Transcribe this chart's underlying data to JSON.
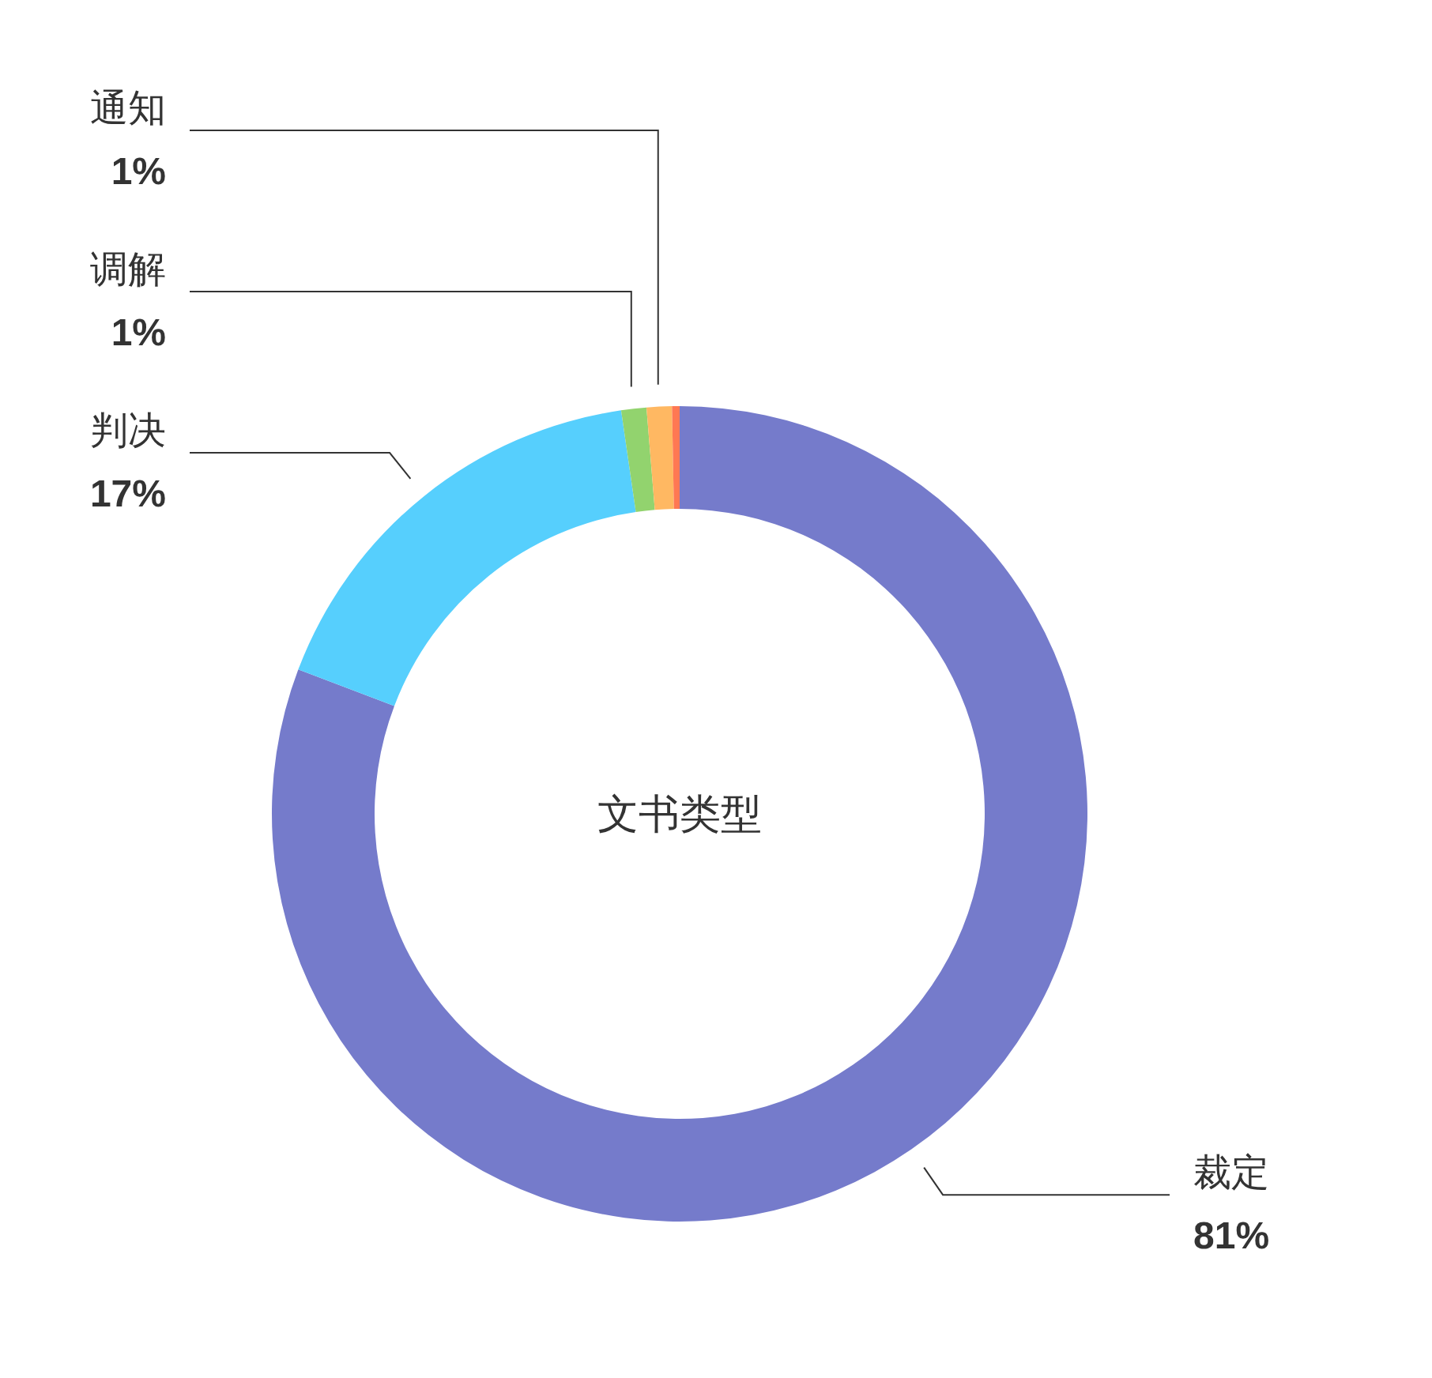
{
  "chart_data": {
    "type": "donut",
    "title": "文书类型",
    "categories": [
      "裁定",
      "判决",
      "调解",
      "通知",
      null
    ],
    "values": [
      81,
      17,
      1,
      1,
      0.3
    ],
    "colors": [
      "#757bcb",
      "#56cffd",
      "#92d36e",
      "#ffb862",
      "#ff7853"
    ],
    "value_labels": [
      "81%",
      "17%",
      "1%",
      "1%",
      null
    ]
  }
}
